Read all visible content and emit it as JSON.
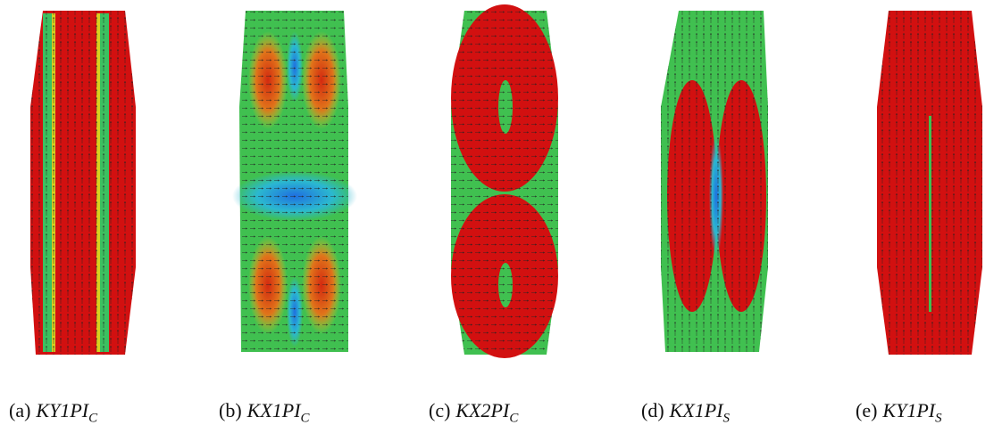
{
  "panels": [
    {
      "label": "(a)",
      "name": "KY1PI",
      "subscript": "C"
    },
    {
      "label": "(b)",
      "name": "KX1PI",
      "subscript": "C"
    },
    {
      "label": "(c)",
      "name": "KX2PI",
      "subscript": "C"
    },
    {
      "label": "(d)",
      "name": "KX1PI",
      "subscript": "S"
    },
    {
      "label": "(e)",
      "name": "KY1PI",
      "subscript": "S"
    }
  ]
}
